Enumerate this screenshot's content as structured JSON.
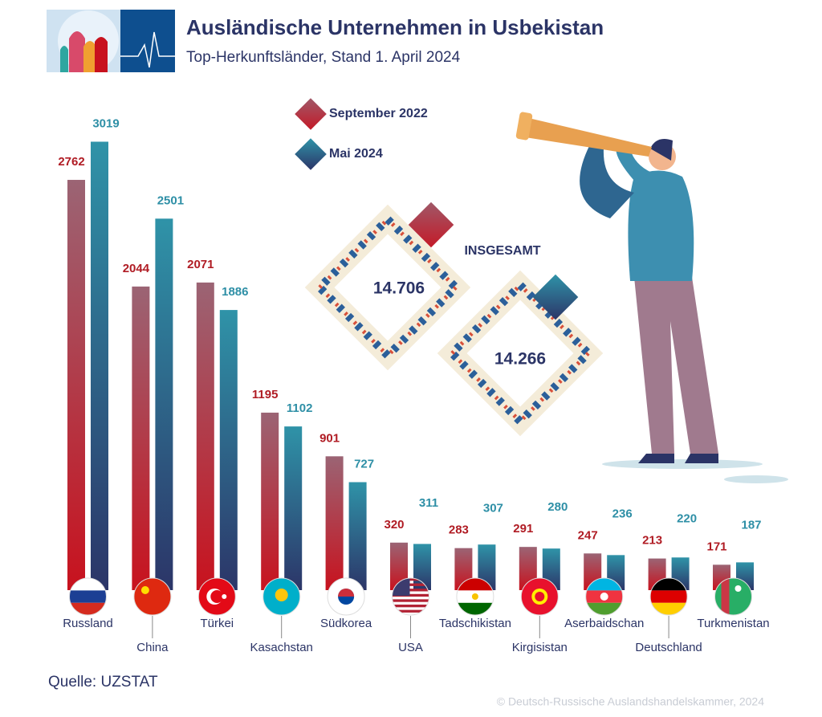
{
  "chart_data": {
    "type": "bar",
    "title": "Ausländische Unternehmen in Usbekistan",
    "subtitle": "Top-Herkunftsländer, Stand 1. April 2024",
    "categories": [
      "Russland",
      "China",
      "Türkei",
      "Kasachstan",
      "Südkorea",
      "USA",
      "Tadschikistan",
      "Kirgisistan",
      "Aserbaidschan",
      "Deutschland",
      "Turkmenistan"
    ],
    "series": [
      {
        "name": "September 2022",
        "color": "#b01c24",
        "values": [
          2762,
          2044,
          2071,
          1195,
          901,
          320,
          283,
          291,
          247,
          213,
          171
        ]
      },
      {
        "name": "Mai 2024",
        "color": "#2e8fa6",
        "values": [
          3019,
          2501,
          1886,
          1102,
          727,
          311,
          307,
          280,
          236,
          220,
          187
        ]
      }
    ],
    "totals": {
      "label": "INSGESAMT",
      "values": [
        14706,
        14266
      ],
      "value_labels": [
        "14.706",
        "14.266"
      ]
    },
    "source": "Quelle: UZSTAT",
    "copyright": "© Deutsch-Russische Auslandshandelskammer, 2024"
  }
}
